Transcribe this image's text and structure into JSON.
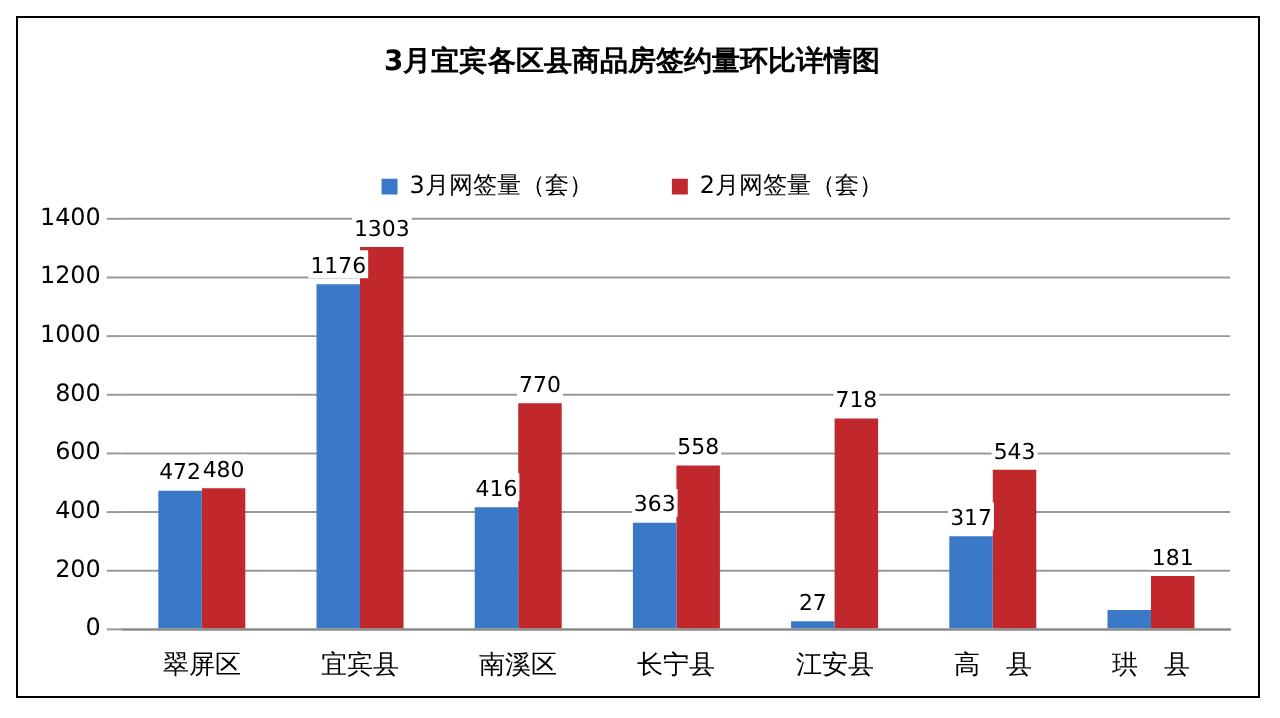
{
  "chart_data": {
    "type": "bar",
    "title": "3月宜宾各区县商品房签约量环比详情图",
    "categories": [
      "翠屏区",
      "宜宾县",
      "南溪区",
      "长宁县",
      "江安县",
      "高　县",
      "珙　县"
    ],
    "series": [
      {
        "name": "3月网签量（套）",
        "color": "#3a78c8",
        "values": [
          472,
          1176,
          416,
          363,
          27,
          317,
          65
        ],
        "value_labels": [
          "472",
          "1176",
          "416",
          "363",
          "27",
          "317",
          null
        ]
      },
      {
        "name": "2月网签量（套）",
        "color": "#c0282c",
        "values": [
          480,
          1303,
          770,
          558,
          718,
          543,
          181
        ],
        "value_labels": [
          "480",
          "1303",
          "770",
          "558",
          "718",
          "543",
          "181"
        ]
      }
    ],
    "ylim": [
      0,
      1400
    ],
    "yticks": [
      0,
      200,
      400,
      600,
      800,
      1000,
      1200,
      1400
    ],
    "grid": "y",
    "legend": "top"
  }
}
